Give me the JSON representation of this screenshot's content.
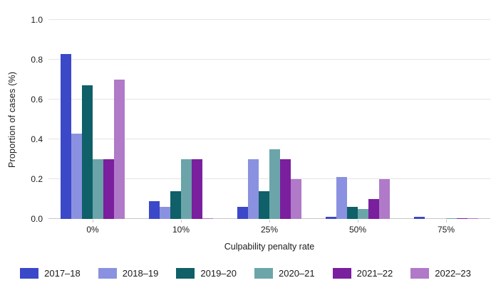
{
  "chart_data": {
    "type": "bar",
    "title": "",
    "xlabel": "Culpability penalty rate",
    "ylabel": "Proportion of cases (%)",
    "categories": [
      "0%",
      "10%",
      "25%",
      "50%",
      "75%"
    ],
    "series": [
      {
        "name": "2017–18",
        "color": "#3b48c8",
        "values": [
          0.83,
          0.09,
          0.06,
          0.01,
          0.01
        ]
      },
      {
        "name": "2018–19",
        "color": "#8a91e0",
        "values": [
          0.43,
          0.06,
          0.3,
          0.21,
          0
        ]
      },
      {
        "name": "2019–20",
        "color": "#0f6068",
        "values": [
          0.67,
          0.14,
          0.14,
          0.06,
          0
        ]
      },
      {
        "name": "2020–21",
        "color": "#6ba5aa",
        "values": [
          0.3,
          0.3,
          0.35,
          0.05,
          0.003
        ]
      },
      {
        "name": "2021–22",
        "color": "#7a1f9e",
        "values": [
          0.3,
          0.3,
          0.3,
          0.1,
          0.003
        ]
      },
      {
        "name": "2022–23",
        "color": "#b07ac8",
        "values": [
          0.7,
          0.003,
          0.2,
          0.2,
          0.003
        ]
      }
    ],
    "y_ticks": [
      "0.0",
      "0.2",
      "0.4",
      "0.6",
      "0.8",
      "1.0"
    ],
    "ylim": [
      0,
      1.0
    ],
    "grid": true,
    "legend_position": "bottom"
  }
}
